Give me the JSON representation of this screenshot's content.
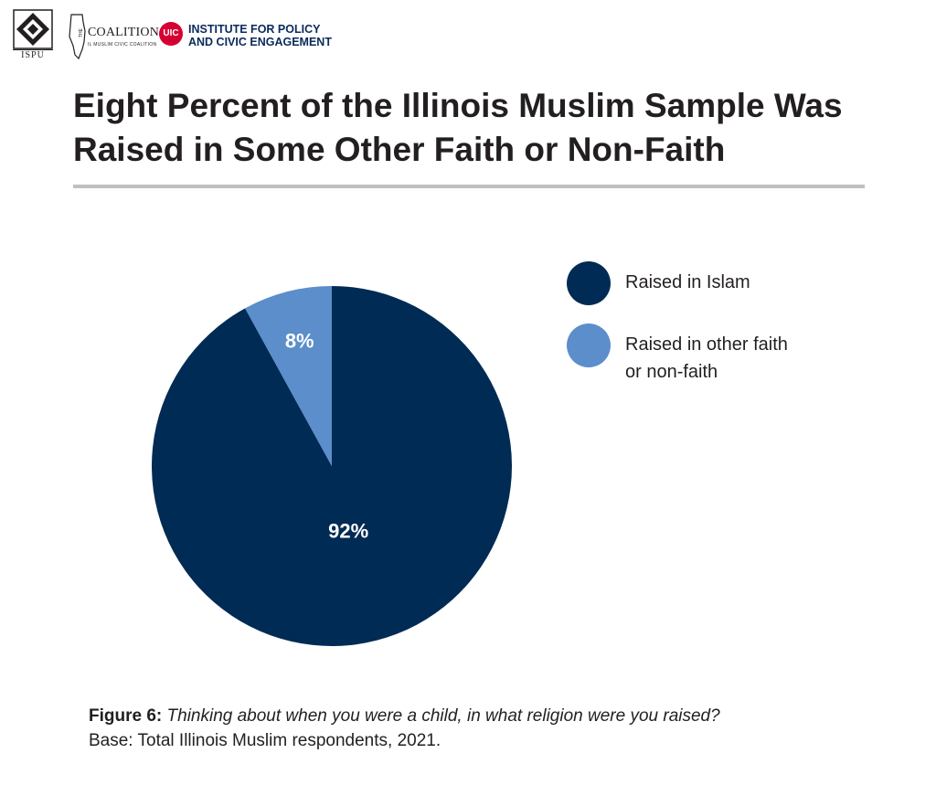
{
  "header": {
    "ispu_text": "ISPU",
    "coalition_name": "COALITION",
    "coalition_prefix": "THE",
    "coalition_sub": "IL MUSLIM CIVIC COALITION",
    "uic_badge": "UIC",
    "uic_line1": "INSTITUTE FOR POLICY",
    "uic_line2": "AND CIVIC ENGAGEMENT"
  },
  "colors": {
    "islam": "#002b54",
    "other": "#5b8ecb",
    "rule": "#bfbfbf"
  },
  "chart_data": {
    "type": "pie",
    "title": "Eight Percent of the Illinois Muslim Sample Was Raised in Some Other Faith or Non-Faith",
    "categories": [
      "Raised in Islam",
      "Raised in other faith or non-faith"
    ],
    "values": [
      92,
      8
    ],
    "data_labels": [
      "92%",
      "8%"
    ],
    "legend_position": "right"
  },
  "legend": {
    "items": [
      {
        "label": "Raised in Islam"
      },
      {
        "label_line1": "Raised in other faith",
        "label_line2": "or non-faith"
      }
    ]
  },
  "caption": {
    "figure_label": "Figure 6:",
    "question": "Thinking about when you were a child, in what religion were you raised?",
    "base": "Base: Total Illinois Muslim respondents, 2021."
  }
}
